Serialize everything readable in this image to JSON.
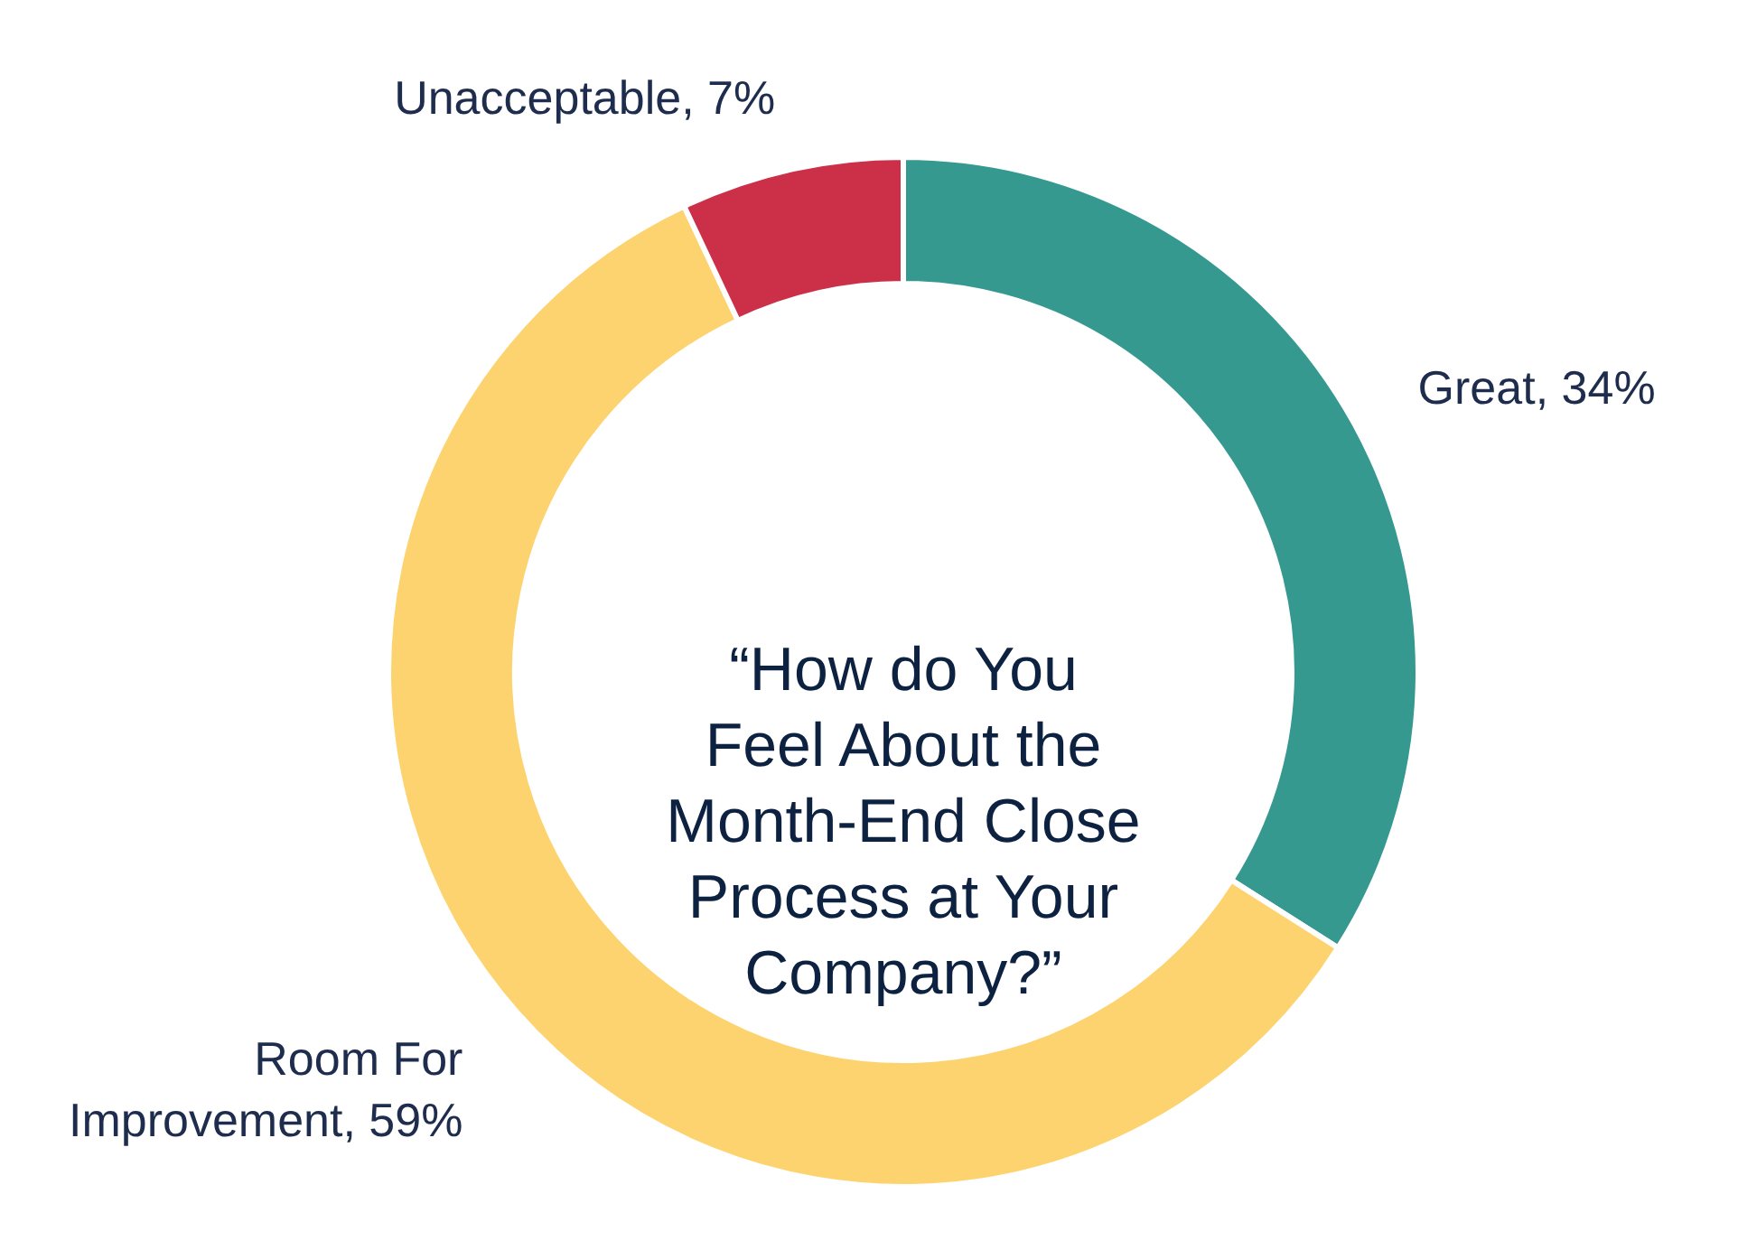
{
  "chart_data": {
    "type": "donut",
    "title": "“How do You Feel About the Month-End Close Process at Your Company?”",
    "categories": [
      "Great",
      "Room For Improvement",
      "Unacceptable"
    ],
    "values": [
      34,
      59,
      7
    ],
    "colors": [
      "#35998f",
      "#fdd36f",
      "#cc3049"
    ],
    "value_labels": [
      "34%",
      "59%",
      "7%"
    ]
  }
}
